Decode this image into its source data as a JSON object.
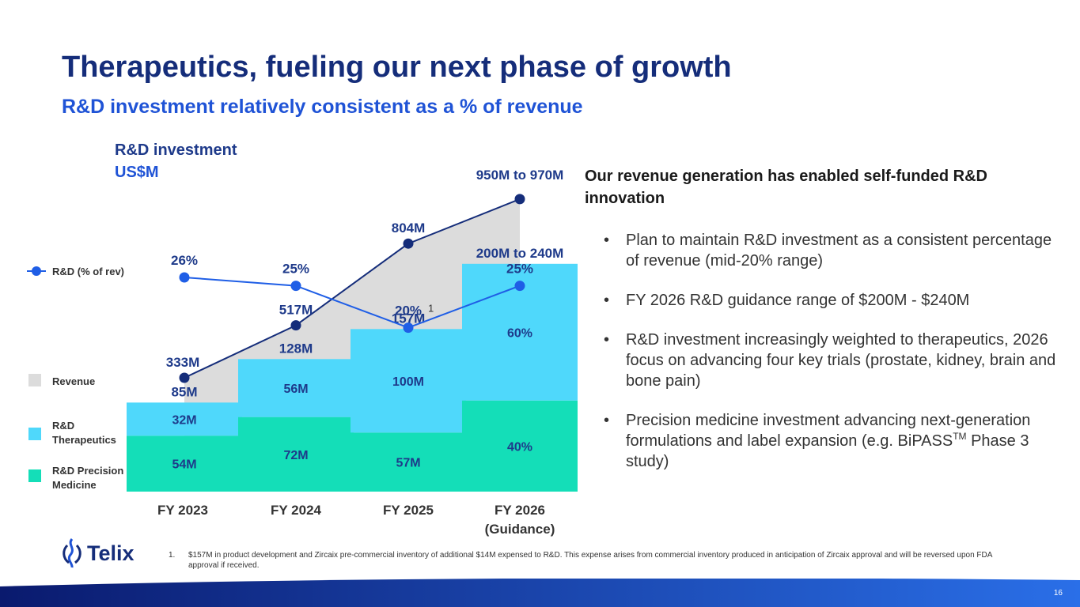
{
  "header": {
    "title": "Therapeutics, fueling our next phase of growth",
    "subtitle": "R&D investment relatively consistent as a % of revenue"
  },
  "colors": {
    "title": "#152d7a",
    "subtitle": "#1f53d6",
    "revenue_area": "#dcdcdc",
    "revenue_line": "#152d7a",
    "rd_pct_line": "#1f5ee6",
    "therapeutics": "#4fd8fb",
    "precision": "#14deb8",
    "label_navy": "#1e3a8a",
    "band_left": "#0a1a6e",
    "band_right": "#2a6fe8"
  },
  "chart_data": {
    "type": "bar",
    "title": "R&D investment",
    "ylabel": "US$M",
    "categories": [
      "FY 2023",
      "FY 2024",
      "FY 2025",
      "FY 2026"
    ],
    "category_sublabels": [
      "",
      "",
      "",
      "(Guidance)"
    ],
    "series": [
      {
        "name": "R&D Precision Medicine",
        "values": [
          54,
          72,
          57,
          null
        ],
        "labels": [
          "54M",
          "72M",
          "57M",
          "40%"
        ]
      },
      {
        "name": "R&D Therapeutics",
        "values": [
          32,
          56,
          100,
          null
        ],
        "labels": [
          "32M",
          "56M",
          "100M",
          "60%"
        ]
      }
    ],
    "totals": {
      "values": [
        85,
        128,
        157,
        220
      ],
      "labels": [
        "85M",
        "128M",
        "157M",
        "200M to 240M"
      ],
      "footnote_marker": [
        "",
        "",
        "1",
        ""
      ]
    },
    "guidance_range": {
      "category": "FY 2026",
      "low": 200,
      "high": 240,
      "split_pct": {
        "R&D Therapeutics": 60,
        "R&D Precision Medicine": 40
      }
    },
    "revenue": {
      "name": "Revenue",
      "values": [
        333,
        517,
        804,
        960
      ],
      "labels": [
        "333M",
        "517M",
        "804M",
        "950M to 970M"
      ]
    },
    "rd_pct_of_revenue": {
      "name": "R&D (% of rev)",
      "values": [
        26,
        25,
        20,
        25
      ],
      "labels": [
        "26%",
        "25%",
        "20%",
        "25%"
      ]
    },
    "legend": {
      "rd_pct": "R&D (% of rev)",
      "revenue": "Revenue",
      "therapeutics": [
        "R&D",
        "Therapeutics"
      ],
      "precision": [
        "R&D Precision",
        "Medicine"
      ]
    }
  },
  "right_panel": {
    "heading": "Our revenue generation has enabled self-funded R&D innovation",
    "bullet_char": "•",
    "bullets": [
      "Plan to maintain R&D investment as a consistent percentage of revenue (mid-20% range)",
      "FY 2026 R&D guidance range of $200M - $240M",
      "R&D investment increasingly weighted to therapeutics, 2026 focus on advancing four key trials (prostate, kidney, brain and bone pain)"
    ],
    "bullet4_pre": "Precision medicine investment advancing next-generation formulations and label expansion (e.g. BiPASS",
    "bullet4_sup": "TM",
    "bullet4_post": " Phase 3 study)"
  },
  "footer": {
    "logo_text": "Telix",
    "footnote_number": "1.",
    "footnote": "$157M in product development and Zircaix pre-commercial inventory of additional $14M expensed to R&D. This expense arises from commercial inventory produced in anticipation of Zircaix approval and will be reversed upon FDA approval if received.",
    "page_number": "16"
  }
}
